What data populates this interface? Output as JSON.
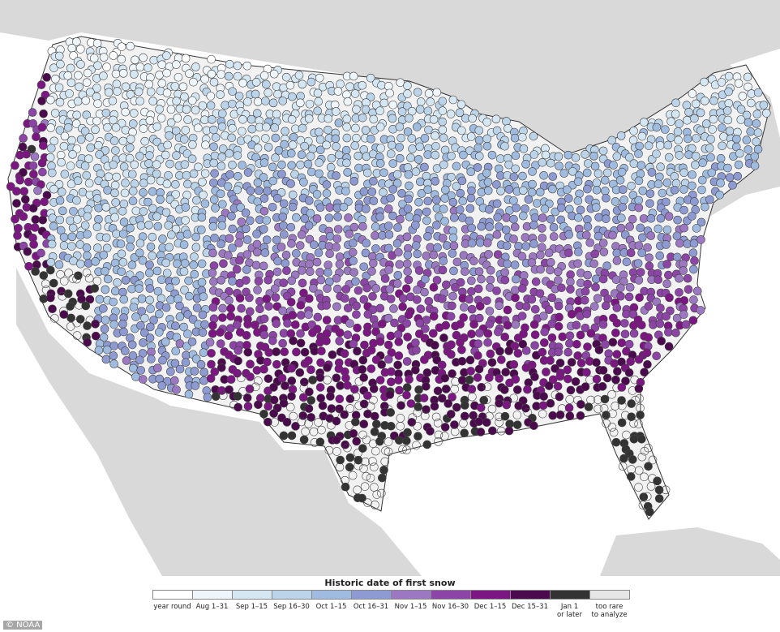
{
  "legend": {
    "title": "Historic date of first snow",
    "items": [
      {
        "label": "year round",
        "color": "#ffffff"
      },
      {
        "label": "Aug 1–31",
        "color": "#eef6fb"
      },
      {
        "label": "Sep 1–15",
        "color": "#d6e7f4"
      },
      {
        "label": "Sep 16–30",
        "color": "#bcd4ea"
      },
      {
        "label": "Oct 1–15",
        "color": "#9fbbe0"
      },
      {
        "label": "Oct 16–31",
        "color": "#8e9ad2"
      },
      {
        "label": "Nov 1–15",
        "color": "#9d78c2"
      },
      {
        "label": "Nov 16–30",
        "color": "#8c45a6"
      },
      {
        "label": "Dec 1–15",
        "color": "#7b1682"
      },
      {
        "label": "Dec 15–31",
        "color": "#4b0a4d"
      },
      {
        "label": "Jan 1\nor later",
        "color": "#333333"
      },
      {
        "label": "too rare\nto analyze",
        "color": "#e6e6e6"
      }
    ]
  },
  "credit": "© NOAA"
}
